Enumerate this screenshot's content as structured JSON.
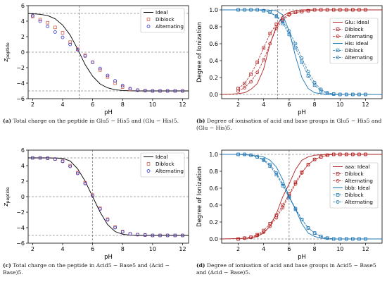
{
  "chart_data": [
    {
      "type": "line",
      "panel": "a",
      "xlabel": "pH",
      "ylabel": "z_peptide",
      "xlim": [
        1.7,
        12.4
      ],
      "ylim": [
        -6,
        6
      ],
      "xticks": [
        2,
        4,
        6,
        8,
        10,
        12
      ],
      "yticks": [
        -6,
        -4,
        -2,
        0,
        2,
        4,
        6
      ],
      "grid": false,
      "legend": "top-right",
      "ref_lines": {
        "v": [
          5.1
        ],
        "h": [
          5,
          0,
          -5
        ]
      },
      "series": [
        {
          "name": "Ideal",
          "kind": "line",
          "color": "#000000",
          "x": [
            1.7,
            2,
            2.5,
            3,
            3.5,
            4,
            4.5,
            5,
            5.5,
            6,
            6.5,
            7,
            7.5,
            8,
            8.5,
            9,
            10,
            11,
            12.4
          ],
          "y": [
            4.98,
            4.95,
            4.88,
            4.72,
            4.3,
            3.5,
            2.2,
            0.4,
            -1.6,
            -3.1,
            -4.1,
            -4.6,
            -4.85,
            -4.95,
            -4.98,
            -5,
            -5,
            -5,
            -5
          ]
        },
        {
          "name": "Diblock",
          "kind": "square",
          "color": "#d6604d",
          "x": [
            2,
            2.5,
            3,
            3.5,
            4,
            4.5,
            5,
            5.5,
            6,
            6.5,
            7,
            7.5,
            8,
            8.5,
            9,
            9.5,
            10,
            10.5,
            11,
            11.5,
            12
          ],
          "y": [
            4.6,
            4.2,
            3.8,
            3.2,
            2.5,
            1.3,
            0.4,
            -0.4,
            -1.3,
            -2.3,
            -3.2,
            -4.0,
            -4.5,
            -4.8,
            -4.9,
            -4.95,
            -5,
            -5,
            -5,
            -5,
            -5
          ]
        },
        {
          "name": "Alternating",
          "kind": "circle",
          "color": "#3333cc",
          "x": [
            2,
            2.5,
            3,
            3.5,
            4,
            4.5,
            5,
            5.5,
            6,
            6.5,
            7,
            7.5,
            8,
            8.5,
            9,
            9.5,
            10,
            10.5,
            11,
            11.5,
            12
          ],
          "y": [
            4.7,
            4.0,
            3.3,
            2.6,
            1.9,
            1.0,
            0.3,
            -0.5,
            -1.3,
            -2.1,
            -3.0,
            -3.7,
            -4.3,
            -4.7,
            -4.9,
            -4.95,
            -5,
            -5,
            -5,
            -5,
            -5
          ]
        }
      ],
      "caption_label": "(a)",
      "caption": "Total charge on the peptide in Glu5 − His5 and (Glu − His)5."
    },
    {
      "type": "line",
      "panel": "b",
      "xlabel": "pH",
      "ylabel": "Degree of Ionization",
      "xlim": [
        0.7,
        13.3
      ],
      "ylim": [
        -0.05,
        1.05
      ],
      "xticks": [
        2,
        4,
        6,
        8,
        10,
        12
      ],
      "yticks": [
        0.0,
        0.2,
        0.4,
        0.6,
        0.8,
        1.0
      ],
      "grid": false,
      "legend": "right",
      "ref_lines": {
        "v": [
          5.1
        ],
        "h": [
          0,
          1
        ]
      },
      "series": [
        {
          "name": "Glu: Ideal",
          "kind": "line",
          "color": "#b22222",
          "x": [
            0.7,
            1.5,
            2,
            2.5,
            3,
            3.5,
            4,
            4.5,
            5,
            5.5,
            6,
            6.5,
            7,
            8,
            10,
            13.3
          ],
          "y": [
            0,
            0.005,
            0.01,
            0.02,
            0.06,
            0.13,
            0.3,
            0.6,
            0.8,
            0.93,
            0.97,
            0.99,
            1,
            1,
            1,
            1
          ]
        },
        {
          "name": "Diblock",
          "kind": "square-dash",
          "color": "#b22222",
          "x": [
            2,
            2.5,
            3,
            3.5,
            4,
            4.5,
            5,
            5.5,
            6,
            6.5,
            7,
            7.5,
            8,
            8.5,
            9,
            9.5,
            10,
            10.5,
            11,
            11.5,
            12
          ],
          "y": [
            0.07,
            0.13,
            0.24,
            0.38,
            0.55,
            0.72,
            0.83,
            0.9,
            0.95,
            0.97,
            0.98,
            0.99,
            1,
            1,
            1,
            1,
            1,
            1,
            1,
            1,
            1
          ]
        },
        {
          "name": "Alternating",
          "kind": "circle-dash",
          "color": "#b22222",
          "x": [
            2,
            2.5,
            3,
            3.5,
            4,
            4.5,
            5,
            5.5,
            6,
            6.5,
            7,
            7.5,
            8,
            8.5,
            9,
            9.5,
            10,
            10.5,
            11,
            11.5,
            12
          ],
          "y": [
            0.04,
            0.08,
            0.15,
            0.26,
            0.41,
            0.6,
            0.78,
            0.88,
            0.94,
            0.97,
            0.98,
            0.99,
            1,
            1,
            1,
            1,
            1,
            1,
            1,
            1,
            1
          ]
        },
        {
          "name": "His: Ideal",
          "kind": "line",
          "color": "#1f77b4",
          "x": [
            0.7,
            2,
            4,
            5,
            5.5,
            6,
            6.5,
            7,
            7.5,
            8,
            9,
            10,
            13.3
          ],
          "y": [
            1,
            1,
            1,
            0.99,
            0.94,
            0.75,
            0.45,
            0.2,
            0.07,
            0.02,
            0,
            0,
            0
          ]
        },
        {
          "name": "Diblock",
          "kind": "square-dash",
          "color": "#1f77b4",
          "x": [
            2,
            2.5,
            3,
            3.5,
            4,
            4.5,
            5,
            5.5,
            6,
            6.5,
            7,
            7.5,
            8,
            8.5,
            9,
            9.5,
            10,
            10.5,
            11,
            11.5,
            12
          ],
          "y": [
            1,
            1,
            1,
            1,
            0.99,
            0.97,
            0.92,
            0.84,
            0.71,
            0.55,
            0.38,
            0.22,
            0.11,
            0.04,
            0.015,
            0.005,
            0,
            0,
            0,
            0,
            0
          ]
        },
        {
          "name": "Alternating",
          "kind": "circle-dash",
          "color": "#1f77b4",
          "x": [
            2,
            2.5,
            3,
            3.5,
            4,
            4.5,
            5,
            5.5,
            6,
            6.5,
            7,
            7.5,
            8,
            8.5,
            9,
            9.5,
            10,
            10.5,
            11,
            11.5,
            12
          ],
          "y": [
            1,
            1,
            1,
            1,
            0.99,
            0.97,
            0.93,
            0.86,
            0.75,
            0.6,
            0.43,
            0.27,
            0.14,
            0.06,
            0.02,
            0.005,
            0,
            0,
            0,
            0,
            0
          ]
        }
      ],
      "caption_label": "(b)",
      "caption": "Degree of ionisation of acid and base groups in Glu5 − His5 and (Glu − His)5."
    },
    {
      "type": "line",
      "panel": "c",
      "xlabel": "pH",
      "ylabel": "z_peptide",
      "xlim": [
        1.7,
        12.4
      ],
      "ylim": [
        -6,
        6
      ],
      "xticks": [
        2,
        4,
        6,
        8,
        10,
        12
      ],
      "yticks": [
        -6,
        -4,
        -2,
        0,
        2,
        4,
        6
      ],
      "grid": false,
      "legend": "top-right",
      "ref_lines": {
        "v": [
          6.0
        ],
        "h": [
          5,
          0,
          -5
        ]
      },
      "series": [
        {
          "name": "Ideal",
          "kind": "line",
          "color": "#000000",
          "x": [
            1.7,
            2,
            3,
            4,
            4.5,
            5,
            5.5,
            6,
            6.5,
            7,
            7.5,
            8,
            8.5,
            9,
            10,
            12.4
          ],
          "y": [
            5,
            5,
            5,
            4.95,
            4.6,
            3.6,
            2.0,
            0,
            -2.0,
            -3.6,
            -4.5,
            -4.85,
            -4.96,
            -5,
            -5,
            -5
          ]
        },
        {
          "name": "Diblock",
          "kind": "square",
          "color": "#d6604d",
          "x": [
            2,
            2.5,
            3,
            3.5,
            4,
            4.5,
            5,
            5.5,
            6,
            6.5,
            7,
            7.5,
            8,
            8.5,
            9,
            9.5,
            10,
            10.5,
            11,
            11.5,
            12
          ],
          "y": [
            5,
            5,
            4.95,
            4.85,
            4.6,
            4.0,
            3.1,
            1.8,
            0.2,
            -1.5,
            -2.9,
            -3.9,
            -4.5,
            -4.8,
            -4.9,
            -4.95,
            -5,
            -5,
            -5,
            -5,
            -5
          ]
        },
        {
          "name": "Alternating",
          "kind": "circle",
          "color": "#3333cc",
          "x": [
            2,
            2.5,
            3,
            3.5,
            4,
            4.5,
            5,
            5.5,
            6,
            6.5,
            7,
            7.5,
            8,
            8.5,
            9,
            9.5,
            10,
            10.5,
            11,
            11.5,
            12
          ],
          "y": [
            5,
            5,
            4.95,
            4.85,
            4.55,
            3.9,
            3.0,
            1.7,
            0.1,
            -1.6,
            -3.0,
            -4.0,
            -4.55,
            -4.8,
            -4.9,
            -4.95,
            -5,
            -5,
            -5,
            -5,
            -5
          ]
        }
      ],
      "caption_label": "(c)",
      "caption": "Total charge on the peptide in Acid5 − Base5 and (Acid − Base)5."
    },
    {
      "type": "line",
      "panel": "d",
      "xlabel": "pH",
      "ylabel": "Degree of Ionization",
      "xlim": [
        0.7,
        13.3
      ],
      "ylim": [
        -0.05,
        1.05
      ],
      "xticks": [
        2,
        4,
        6,
        8,
        10,
        12
      ],
      "yticks": [
        0.0,
        0.2,
        0.4,
        0.6,
        0.8,
        1.0
      ],
      "grid": false,
      "legend": "right",
      "ref_lines": {
        "v": [
          6.0
        ],
        "h": [
          0,
          1
        ]
      },
      "series": [
        {
          "name": "aaa: Ideal",
          "kind": "line",
          "color": "#b22222",
          "x": [
            0.7,
            2,
            3,
            3.5,
            4,
            4.5,
            5,
            5.5,
            6,
            6.5,
            7,
            7.5,
            8,
            9,
            13.3
          ],
          "y": [
            0,
            0.005,
            0.01,
            0.03,
            0.07,
            0.15,
            0.3,
            0.5,
            0.65,
            0.82,
            0.93,
            0.97,
            0.99,
            1,
            1
          ]
        },
        {
          "name": "Diblock",
          "kind": "square-dash",
          "color": "#b22222",
          "x": [
            2,
            2.5,
            3,
            3.5,
            4,
            4.5,
            5,
            5.5,
            6,
            6.5,
            7,
            7.5,
            8,
            8.5,
            9,
            9.5,
            10,
            10.5,
            11,
            11.5,
            12
          ],
          "y": [
            0.0,
            0.01,
            0.02,
            0.05,
            0.1,
            0.18,
            0.28,
            0.4,
            0.53,
            0.67,
            0.79,
            0.88,
            0.94,
            0.97,
            0.99,
            1,
            1,
            1,
            1,
            1,
            1
          ]
        },
        {
          "name": "Alternating",
          "kind": "circle-dash",
          "color": "#b22222",
          "x": [
            2,
            2.5,
            3,
            3.5,
            4,
            4.5,
            5,
            5.5,
            6,
            6.5,
            7,
            7.5,
            8,
            8.5,
            9,
            9.5,
            10,
            10.5,
            11,
            11.5,
            12
          ],
          "y": [
            0.0,
            0.01,
            0.02,
            0.04,
            0.08,
            0.15,
            0.25,
            0.37,
            0.51,
            0.65,
            0.78,
            0.88,
            0.94,
            0.97,
            0.99,
            1,
            1,
            1,
            1,
            1,
            1
          ]
        },
        {
          "name": "bbb: Ideal",
          "kind": "line",
          "color": "#1f77b4",
          "x": [
            0.7,
            2,
            3,
            4,
            4.5,
            5,
            5.5,
            6,
            6.5,
            7,
            7.5,
            8,
            8.5,
            9,
            10,
            13.3
          ],
          "y": [
            1,
            1,
            0.99,
            0.97,
            0.93,
            0.85,
            0.7,
            0.5,
            0.35,
            0.18,
            0.07,
            0.03,
            0.01,
            0,
            0,
            0
          ]
        },
        {
          "name": "Diblock",
          "kind": "square-dash",
          "color": "#1f77b4",
          "x": [
            2,
            2.5,
            3,
            3.5,
            4,
            4.5,
            5,
            5.5,
            6,
            6.5,
            7,
            7.5,
            8,
            8.5,
            9,
            9.5,
            10,
            10.5,
            11,
            11.5,
            12
          ],
          "y": [
            1,
            1,
            0.99,
            0.97,
            0.93,
            0.86,
            0.76,
            0.63,
            0.49,
            0.35,
            0.23,
            0.13,
            0.07,
            0.03,
            0.01,
            0,
            0,
            0,
            0,
            0,
            0
          ]
        },
        {
          "name": "Alternating",
          "kind": "circle-dash",
          "color": "#1f77b4",
          "x": [
            2,
            2.5,
            3,
            3.5,
            4,
            4.5,
            5,
            5.5,
            6,
            6.5,
            7,
            7.5,
            8,
            8.5,
            9,
            9.5,
            10,
            10.5,
            11,
            11.5,
            12
          ],
          "y": [
            1,
            1,
            0.99,
            0.97,
            0.94,
            0.88,
            0.78,
            0.65,
            0.5,
            0.36,
            0.23,
            0.13,
            0.07,
            0.03,
            0.01,
            0,
            0,
            0,
            0,
            0,
            0
          ]
        }
      ],
      "caption_label": "(d)",
      "caption": "Degree of ionisation of acid and base groups in Acid5 − Base5 and (Acid − Base)5."
    }
  ]
}
